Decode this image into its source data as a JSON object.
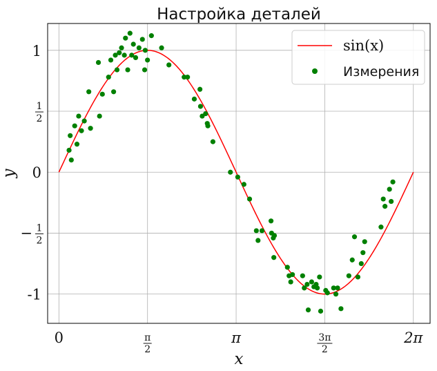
{
  "chart_data": {
    "type": "scatter",
    "title": "Настройка деталей",
    "xlabel": "x",
    "ylabel": "y",
    "xlim": [
      -0.2,
      6.58
    ],
    "ylim": [
      -1.24,
      1.22
    ],
    "grid": true,
    "legend_position": "top-right",
    "x_ticks": [
      {
        "value": 0,
        "label": "0"
      },
      {
        "value": 1.5708,
        "label": "π/2"
      },
      {
        "value": 3.1416,
        "label": "π"
      },
      {
        "value": 4.7124,
        "label": "3π/2"
      },
      {
        "value": 6.2832,
        "label": "2π"
      }
    ],
    "y_ticks": [
      {
        "value": 1,
        "label": "1"
      },
      {
        "value": 0.5,
        "label": "1/2"
      },
      {
        "value": 0,
        "label": "0"
      },
      {
        "value": -0.5,
        "label": "−1/2"
      },
      {
        "value": -1,
        "label": "-1"
      }
    ],
    "series": [
      {
        "name": "sin(x)",
        "kind": "line",
        "color": "#ff0000",
        "function": "sin",
        "x_range": [
          0,
          6.2832
        ]
      },
      {
        "name": "Измерения",
        "kind": "scatter",
        "color": "#008000",
        "points": [
          [
            0.18,
            0.18
          ],
          [
            0.2,
            0.3
          ],
          [
            0.22,
            0.1
          ],
          [
            0.28,
            0.38
          ],
          [
            0.32,
            0.23
          ],
          [
            0.35,
            0.46
          ],
          [
            0.4,
            0.34
          ],
          [
            0.45,
            0.42
          ],
          [
            0.53,
            0.66
          ],
          [
            0.56,
            0.36
          ],
          [
            0.7,
            0.9
          ],
          [
            0.72,
            0.46
          ],
          [
            0.77,
            0.64
          ],
          [
            0.88,
            0.78
          ],
          [
            0.92,
            0.92
          ],
          [
            0.97,
            0.66
          ],
          [
            1.0,
            0.96
          ],
          [
            1.03,
            0.84
          ],
          [
            1.07,
            0.98
          ],
          [
            1.11,
            1.02
          ],
          [
            1.16,
            0.96
          ],
          [
            1.18,
            1.1
          ],
          [
            1.22,
            0.84
          ],
          [
            1.26,
            1.14
          ],
          [
            1.29,
            0.96
          ],
          [
            1.32,
            1.05
          ],
          [
            1.36,
            0.94
          ],
          [
            1.42,
            1.02
          ],
          [
            1.48,
            1.09
          ],
          [
            1.52,
            0.84
          ],
          [
            1.53,
            1.0
          ],
          [
            1.57,
            0.92
          ],
          [
            1.64,
            1.12
          ],
          [
            1.82,
            1.02
          ],
          [
            1.95,
            0.88
          ],
          [
            2.22,
            0.78
          ],
          [
            2.28,
            0.78
          ],
          [
            2.4,
            0.6
          ],
          [
            2.5,
            0.68
          ],
          [
            2.51,
            0.54
          ],
          [
            2.54,
            0.46
          ],
          [
            2.6,
            0.48
          ],
          [
            2.63,
            0.4
          ],
          [
            2.64,
            0.38
          ],
          [
            2.73,
            0.25
          ],
          [
            3.04,
            0.0
          ],
          [
            3.17,
            -0.04
          ],
          [
            3.28,
            -0.1
          ],
          [
            3.38,
            -0.22
          ],
          [
            3.5,
            -0.48
          ],
          [
            3.53,
            -0.56
          ],
          [
            3.6,
            -0.48
          ],
          [
            3.76,
            -0.4
          ],
          [
            3.77,
            -0.5
          ],
          [
            3.8,
            -0.54
          ],
          [
            3.81,
            -0.7
          ],
          [
            3.82,
            -0.52
          ],
          [
            4.05,
            -0.78
          ],
          [
            4.08,
            -0.85
          ],
          [
            4.11,
            -0.9
          ],
          [
            4.14,
            -0.84
          ],
          [
            4.32,
            -0.85
          ],
          [
            4.35,
            -0.95
          ],
          [
            4.4,
            -0.92
          ],
          [
            4.42,
            -1.13
          ],
          [
            4.48,
            -0.9
          ],
          [
            4.52,
            -0.94
          ],
          [
            4.56,
            -0.92
          ],
          [
            4.58,
            -0.95
          ],
          [
            4.62,
            -0.86
          ],
          [
            4.64,
            -1.14
          ],
          [
            4.73,
            -0.97
          ],
          [
            4.76,
            -0.99
          ],
          [
            4.87,
            -0.95
          ],
          [
            4.91,
            -1.0
          ],
          [
            4.94,
            -0.95
          ],
          [
            5.0,
            -1.12
          ],
          [
            5.14,
            -0.85
          ],
          [
            5.2,
            -0.72
          ],
          [
            5.24,
            -0.53
          ],
          [
            5.3,
            -0.86
          ],
          [
            5.36,
            -0.75
          ],
          [
            5.39,
            -0.66
          ],
          [
            5.42,
            -0.57
          ],
          [
            5.71,
            -0.45
          ],
          [
            5.75,
            -0.22
          ],
          [
            5.78,
            -0.28
          ],
          [
            5.86,
            -0.14
          ],
          [
            5.89,
            -0.24
          ],
          [
            5.92,
            -0.08
          ]
        ]
      }
    ]
  }
}
